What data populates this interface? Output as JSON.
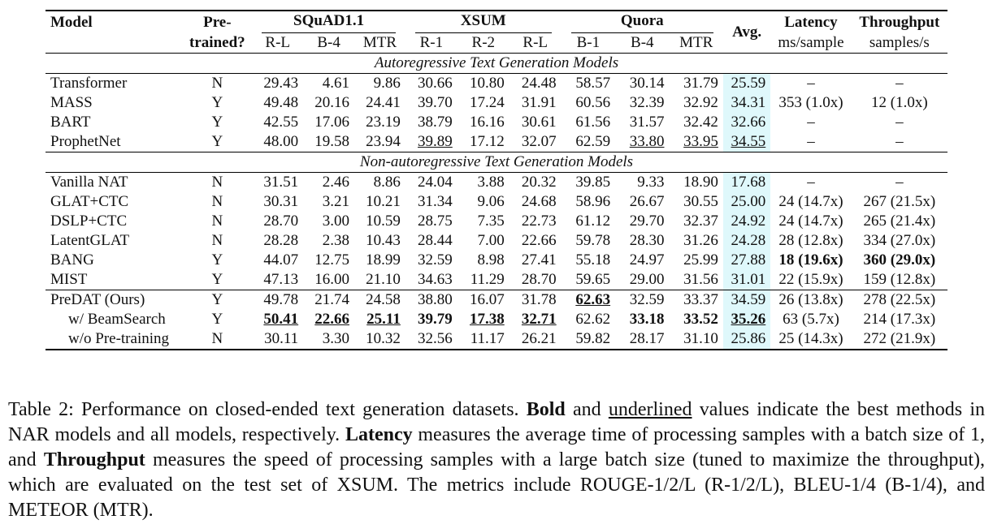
{
  "table": {
    "col_model": "Model",
    "col_pre_1": "Pre-",
    "col_pre_2": "trained?",
    "groups": [
      "SQuAD1.1",
      "XSUM",
      "Quora"
    ],
    "col_avg": "Avg.",
    "col_latency": "Latency",
    "col_latency_unit": "ms/sample",
    "col_throughput": "Throughput",
    "col_throughput_unit": "samples/s",
    "subcols": [
      "R-L",
      "B-4",
      "MTR",
      "R-1",
      "R-2",
      "R-L",
      "B-1",
      "B-4",
      "MTR"
    ],
    "section_ar": "Autoregressive Text Generation Models",
    "section_nar": "Non-autoregressive Text Generation Models",
    "rows": [
      {
        "model": "Transformer",
        "pre": "N",
        "vals": [
          "29.43",
          "4.61",
          "9.86",
          "30.66",
          "10.80",
          "24.48",
          "58.57",
          "30.14",
          "31.79"
        ],
        "avg": "25.59",
        "lat": "–",
        "thr": "–"
      },
      {
        "model": "MASS",
        "pre": "Y",
        "vals": [
          "49.48",
          "20.16",
          "24.41",
          "39.70",
          "17.24",
          "31.91",
          "60.56",
          "32.39",
          "32.92"
        ],
        "avg": "34.31",
        "lat": "353 (1.0x)",
        "thr": "12 (1.0x)"
      },
      {
        "model": "BART",
        "pre": "Y",
        "vals": [
          "42.55",
          "17.06",
          "23.19",
          "38.79",
          "16.16",
          "30.61",
          "61.56",
          "31.57",
          "32.42"
        ],
        "avg": "32.66",
        "lat": "–",
        "thr": "–"
      },
      {
        "model": "ProphetNet",
        "pre": "Y",
        "vals": [
          "48.00",
          "19.58",
          "23.94",
          "39.89",
          "17.12",
          "32.07",
          "62.59",
          "33.80",
          "33.95"
        ],
        "avg": "34.55",
        "lat": "–",
        "thr": "–"
      },
      {
        "model": "Vanilla NAT",
        "pre": "N",
        "vals": [
          "31.51",
          "2.46",
          "8.86",
          "24.04",
          "3.88",
          "20.32",
          "39.85",
          "9.33",
          "18.90"
        ],
        "avg": "17.68",
        "lat": "–",
        "thr": "–"
      },
      {
        "model": "GLAT+CTC",
        "pre": "N",
        "vals": [
          "30.31",
          "3.21",
          "10.21",
          "31.34",
          "9.06",
          "24.68",
          "58.96",
          "26.67",
          "30.55"
        ],
        "avg": "25.00",
        "lat": "24 (14.7x)",
        "thr": "267 (21.5x)"
      },
      {
        "model": "DSLP+CTC",
        "pre": "N",
        "vals": [
          "28.70",
          "3.00",
          "10.59",
          "28.75",
          "7.35",
          "22.73",
          "61.12",
          "29.70",
          "32.37"
        ],
        "avg": "24.92",
        "lat": "24 (14.7x)",
        "thr": "265 (21.4x)"
      },
      {
        "model": "LatentGLAT",
        "pre": "N",
        "vals": [
          "28.28",
          "2.38",
          "10.43",
          "28.44",
          "7.00",
          "22.66",
          "59.78",
          "28.30",
          "31.26"
        ],
        "avg": "24.28",
        "lat": "28 (12.8x)",
        "thr": "334 (27.0x)"
      },
      {
        "model": "BANG",
        "pre": "Y",
        "vals": [
          "44.07",
          "12.75",
          "18.99",
          "32.59",
          "8.98",
          "27.41",
          "55.18",
          "24.97",
          "25.99"
        ],
        "avg": "27.88",
        "lat": "18 (19.6x)",
        "thr": "360 (29.0x)"
      },
      {
        "model": "MIST",
        "pre": "Y",
        "vals": [
          "47.13",
          "16.00",
          "21.10",
          "34.63",
          "11.29",
          "28.70",
          "59.65",
          "29.00",
          "31.56"
        ],
        "avg": "31.01",
        "lat": "22 (15.9x)",
        "thr": "159 (12.8x)"
      },
      {
        "model": "PreDAT (Ours)",
        "pre": "Y",
        "vals": [
          "49.78",
          "21.74",
          "24.58",
          "38.80",
          "16.07",
          "31.78",
          "62.63",
          "32.59",
          "33.37"
        ],
        "avg": "34.59",
        "lat": "26 (13.8x)",
        "thr": "278 (22.5x)"
      },
      {
        "model": "w/ BeamSearch",
        "pre": "Y",
        "vals": [
          "50.41",
          "22.66",
          "25.11",
          "39.79",
          "17.38",
          "32.71",
          "62.62",
          "33.18",
          "33.52"
        ],
        "avg": "35.26",
        "lat": "63 (5.7x)",
        "thr": "214 (17.3x)"
      },
      {
        "model": "w/o Pre-training",
        "pre": "N",
        "vals": [
          "30.11",
          "3.30",
          "10.32",
          "32.56",
          "11.17",
          "26.21",
          "59.82",
          "28.17",
          "31.10"
        ],
        "avg": "25.86",
        "lat": "25 (14.3x)",
        "thr": "272 (21.9x)"
      }
    ]
  },
  "caption": {
    "t1": "Table 2: Performance on closed-ended text generation datasets. ",
    "bold_word": "Bold",
    "t2": " and ",
    "underline_word": "underlined",
    "t3": " values indicate the best methods in NAR models and all models, respectively. ",
    "latency_word": "Latency",
    "t4": " measures the average time of processing samples with a batch size of 1, and ",
    "throughput_word": "Throughput",
    "t5": " measures the speed of processing samples with a large batch size (tuned to maximize the throughput), which are evaluated on the test set of XSUM. The metrics include ROUGE-1/2/L (R-1/2/L), BLEU-1/4 (B-1/4), and METEOR (MTR)."
  }
}
